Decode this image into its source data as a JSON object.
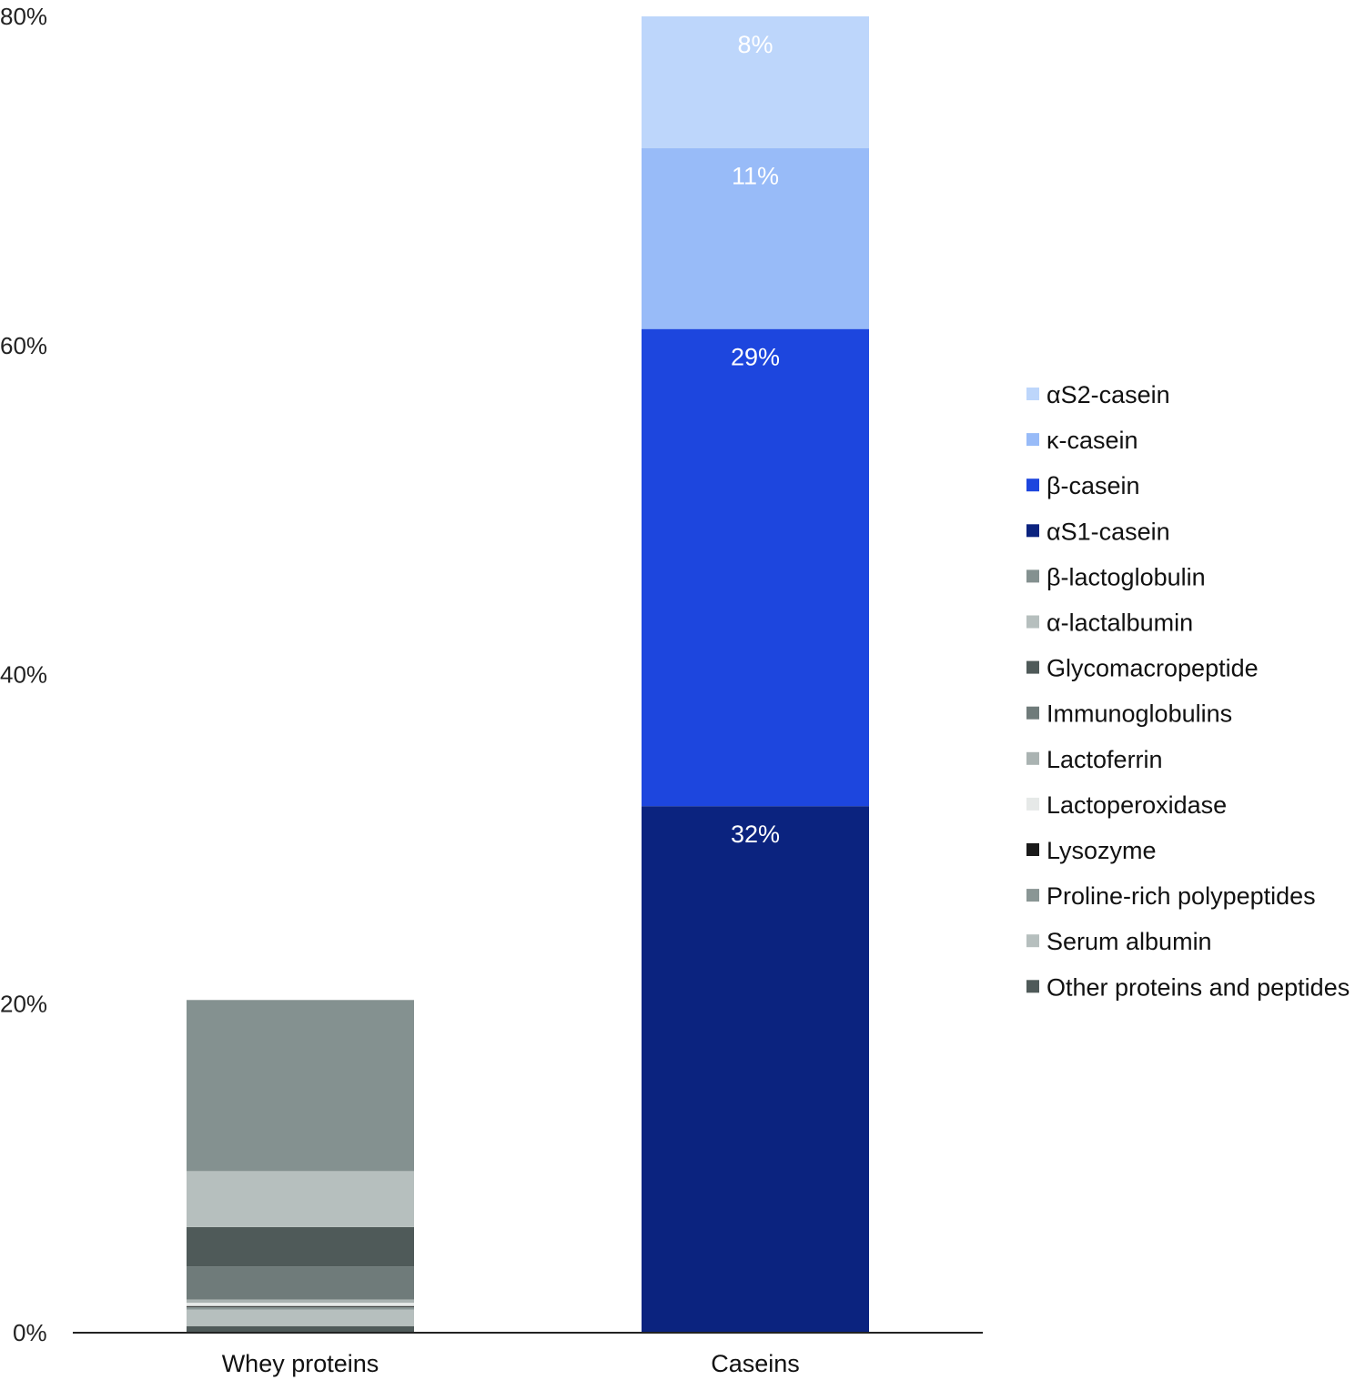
{
  "chart_data": {
    "type": "bar",
    "stacked": true,
    "categories": [
      "Whey proteins",
      "Caseins"
    ],
    "ylim": [
      0,
      80
    ],
    "yticks": [
      "0%",
      "20%",
      "40%",
      "60%",
      "80%"
    ],
    "ytick_values": [
      0,
      20,
      40,
      60,
      80
    ],
    "grid": false,
    "legend_position": "right",
    "legend_order": [
      "αS2-casein",
      "κ-casein",
      "β-casein",
      "αS1-casein",
      "β-lactoglobulin",
      "α-lactalbumin",
      "Glycomacropeptide",
      "Immunoglobulins",
      "Lactoferrin",
      "Lactoperoxidase",
      "Lysozyme",
      "Proline-rich polypeptides",
      "Serum albumin",
      "Other proteins and peptides"
    ],
    "series": [
      {
        "name": "Other proteins and peptides",
        "color": "#4f5a59",
        "values": [
          0.4,
          0
        ],
        "label": ""
      },
      {
        "name": "Serum albumin",
        "color": "#b6bfbe",
        "values": [
          1.0,
          0
        ],
        "label": ""
      },
      {
        "name": "Proline-rich polypeptides",
        "color": "#8a9695",
        "values": [
          0.2,
          0
        ],
        "label": ""
      },
      {
        "name": "Lysozyme",
        "color": "#1a1a1a",
        "values": [
          0.02,
          0
        ],
        "label": ""
      },
      {
        "name": "Lactoperoxidase",
        "color": "#e6e9e8",
        "values": [
          0.2,
          0
        ],
        "label": ""
      },
      {
        "name": "Lactoferrin",
        "color": "#aab3b2",
        "values": [
          0.2,
          0
        ],
        "label": ""
      },
      {
        "name": "Immunoglobulins",
        "color": "#6f7b7a",
        "values": [
          2.0,
          0
        ],
        "label": ""
      },
      {
        "name": "Glycomacropeptide",
        "color": "#4f5a59",
        "values": [
          2.4,
          0
        ],
        "label": ""
      },
      {
        "name": "α-lactalbumin",
        "color": "#b6bfbe",
        "values": [
          3.4,
          0
        ],
        "label": ""
      },
      {
        "name": "β-lactoglobulin",
        "color": "#849190",
        "values": [
          10.4,
          0
        ],
        "label": ""
      },
      {
        "name": "αS1-casein",
        "color": "#0b237f",
        "values": [
          0,
          32
        ],
        "label": "32%"
      },
      {
        "name": "β-casein",
        "color": "#1d46de",
        "values": [
          0,
          29
        ],
        "label": "29%"
      },
      {
        "name": "κ-casein",
        "color": "#98bbf8",
        "values": [
          0,
          11
        ],
        "label": "11%"
      },
      {
        "name": "αS2-casein",
        "color": "#bdd6fb",
        "values": [
          0,
          8
        ],
        "label": "8%"
      }
    ]
  }
}
